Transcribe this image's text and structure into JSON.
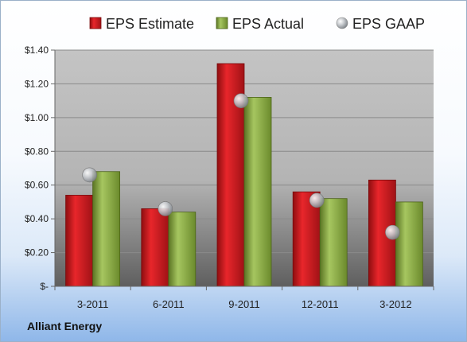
{
  "chart_data": {
    "type": "bar",
    "categories": [
      "3-2011",
      "6-2011",
      "9-2011",
      "12-2011",
      "3-2012"
    ],
    "series": [
      {
        "name": "EPS Estimate",
        "values": [
          0.54,
          0.46,
          1.32,
          0.56,
          0.63
        ],
        "color": "#c0161b",
        "marker": "bar"
      },
      {
        "name": "EPS Actual",
        "values": [
          0.68,
          0.44,
          1.12,
          0.52,
          0.5
        ],
        "color": "#7b9a35",
        "marker": "bar"
      },
      {
        "name": "EPS GAAP",
        "values": [
          0.66,
          0.46,
          1.1,
          0.51,
          0.32
        ],
        "color": "#9aa0a6",
        "marker": "circle"
      }
    ],
    "ylim": [
      0,
      1.4
    ],
    "yticks": [
      0,
      0.2,
      0.4,
      0.6,
      0.8,
      1.0,
      1.2,
      1.4
    ],
    "ytick_labels": [
      "$-",
      "$0.20",
      "$0.40",
      "$0.60",
      "$0.80",
      "$1.00",
      "$1.20",
      "$1.40"
    ],
    "legend_position": "top",
    "grid": true,
    "company": "Alliant Energy"
  }
}
